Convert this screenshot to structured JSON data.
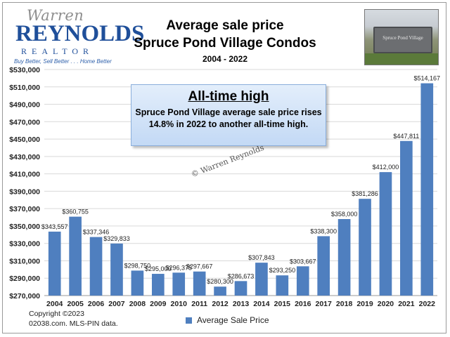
{
  "logo": {
    "script_name": "Warren",
    "main_name": "REYNOLDS",
    "sub_name": "REALTOR",
    "tagline": "Buy Better, Sell Better . . . Home Better"
  },
  "photo": {
    "sign_text": "Spruce Pond Village"
  },
  "callout": {
    "title": "All-time high",
    "line1": "Spruce Pond Village average sale price rises",
    "line2": "14.8% in 2022 to another all-time high."
  },
  "watermark": "© Warren Reynolds",
  "footer": {
    "copyright": "Copyright ©2023",
    "source": "02038.com.  MLS-PIN data."
  },
  "colors": {
    "bar": "#4f7fbf",
    "grid": "#d9d9d9"
  },
  "chart_data": {
    "type": "bar",
    "title": [
      "Average sale price",
      "Spruce Pond Village Condos"
    ],
    "subtitle": "2004 - 2022",
    "xlabel": "",
    "ylabel": "",
    "ylim": [
      270000,
      530000
    ],
    "yticks": [
      270000,
      290000,
      310000,
      330000,
      350000,
      370000,
      390000,
      410000,
      430000,
      450000,
      470000,
      490000,
      510000,
      530000
    ],
    "ytick_labels": [
      "$270,000",
      "$290,000",
      "$310,000",
      "$330,000",
      "$350,000",
      "$370,000",
      "$390,000",
      "$410,000",
      "$430,000",
      "$450,000",
      "$470,000",
      "$490,000",
      "$510,000",
      "$530,000"
    ],
    "grid": true,
    "legend": "bottom",
    "categories": [
      "2004",
      "2005",
      "2006",
      "2007",
      "2008",
      "2009",
      "2010",
      "2011",
      "2012",
      "2013",
      "2014",
      "2015",
      "2016",
      "2017",
      "2018",
      "2019",
      "2020",
      "2021",
      "2022"
    ],
    "series": [
      {
        "name": "Average Sale Price",
        "values": [
          343557,
          360755,
          337346,
          329833,
          298750,
          295000,
          296375,
          297667,
          280300,
          286673,
          307843,
          293250,
          303667,
          338300,
          358000,
          381286,
          412000,
          447811,
          514167
        ],
        "labels": [
          "$343,557",
          "$360,755",
          "$337,346",
          "$329,833",
          "$298,750",
          "$295,000",
          "$296,375",
          "$297,667",
          "$280,300",
          "$286,673",
          "$307,843",
          "$293,250",
          "$303,667",
          "$338,300",
          "$358,000",
          "$381,286",
          "$412,000",
          "$447,811",
          "$514,167"
        ]
      }
    ]
  }
}
